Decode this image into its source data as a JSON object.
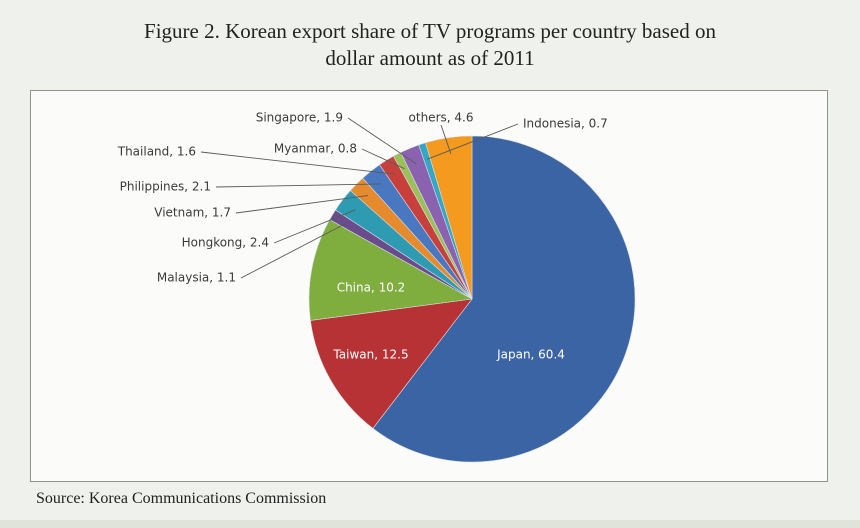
{
  "figure": {
    "title_line1": "Figure 2. Korean export share of TV programs per country based on",
    "title_line2": "dollar amount as of 2011",
    "source": "Source: Korea Communications Commission"
  },
  "chart_data": {
    "type": "pie",
    "title": "Figure 2. Korean export share of TV programs per country based on dollar amount as of 2011",
    "unit": "%",
    "slices": [
      {
        "label": "Japan, 60.4",
        "name": "Japan",
        "value": 60.4,
        "color": "#3b64a4"
      },
      {
        "label": "Taiwan, 12.5",
        "name": "Taiwan",
        "value": 12.5,
        "color": "#b73234"
      },
      {
        "label": "China, 10.2",
        "name": "China",
        "value": 10.2,
        "color": "#7fae3f"
      },
      {
        "label": "Malaysia, 1.1",
        "name": "Malaysia",
        "value": 1.1,
        "color": "#6a4b8c"
      },
      {
        "label": "Hongkong, 2.4",
        "name": "Hongkong",
        "value": 2.4,
        "color": "#2e9bb3"
      },
      {
        "label": "Vietnam, 1.7",
        "name": "Vietnam",
        "value": 1.7,
        "color": "#e58a2d"
      },
      {
        "label": "Philippines, 2.1",
        "name": "Philippines",
        "value": 2.1,
        "color": "#4a78c0"
      },
      {
        "label": "Thailand, 1.6",
        "name": "Thailand",
        "value": 1.6,
        "color": "#c8403c"
      },
      {
        "label": "Myanmar, 0.8",
        "name": "Myanmar",
        "value": 0.8,
        "color": "#9bc05a"
      },
      {
        "label": "Singapore, 1.9",
        "name": "Singapore",
        "value": 1.9,
        "color": "#8a62b0"
      },
      {
        "label": "Indonesia, 0.7",
        "name": "Indonesia",
        "value": 0.7,
        "color": "#34a7c4"
      },
      {
        "label": "others, 4.6",
        "name": "others",
        "value": 4.6,
        "color": "#f39a1f"
      }
    ]
  }
}
